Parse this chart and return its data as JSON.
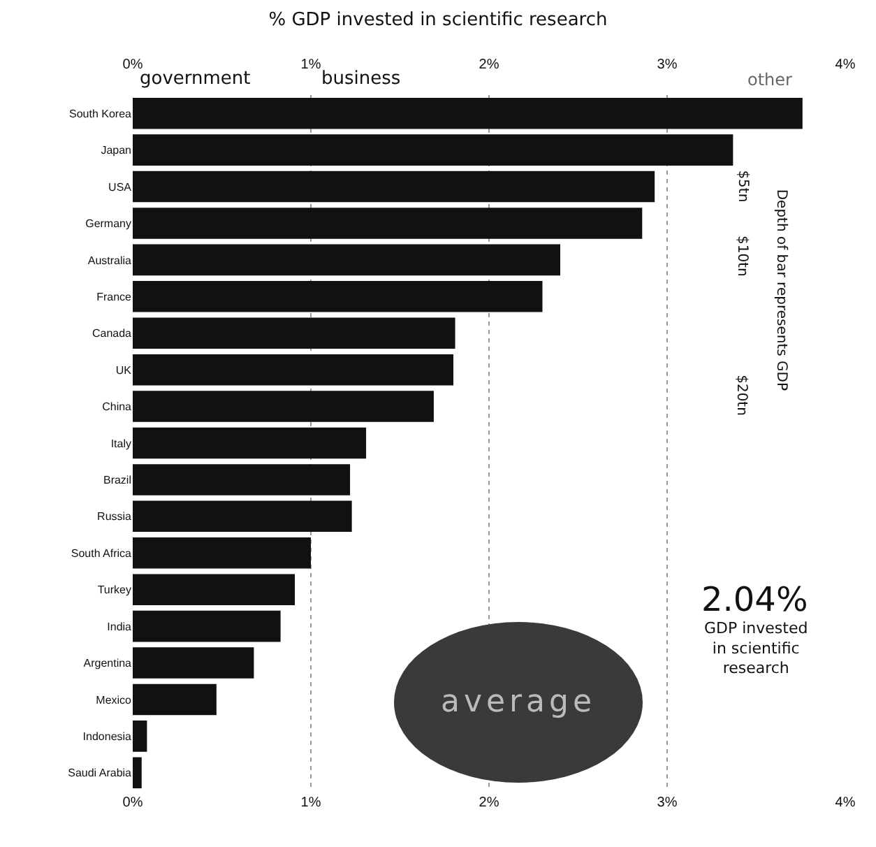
{
  "chart_data": {
    "type": "bar",
    "orientation": "horizontal",
    "title": "% GDP invested in scientific research",
    "categories": [
      "South Korea",
      "Japan",
      "USA",
      "Germany",
      "Australia",
      "France",
      "Canada",
      "UK",
      "China",
      "Italy",
      "Brazil",
      "Russia",
      "South Africa",
      "Turkey",
      "India",
      "Argentina",
      "Mexico",
      "Indonesia",
      "Saudi Arabia"
    ],
    "values": [
      3.76,
      3.37,
      2.93,
      2.86,
      2.4,
      2.3,
      1.81,
      1.8,
      1.69,
      1.31,
      1.22,
      1.23,
      1.0,
      0.91,
      0.83,
      0.68,
      0.47,
      0.08,
      0.05
    ],
    "color": "#111111",
    "xlim": [
      0,
      4
    ],
    "xticks": [
      {
        "value": 0,
        "label": "0%"
      },
      {
        "value": 1,
        "label": "1%"
      },
      {
        "value": 2,
        "label": "2%"
      },
      {
        "value": 3,
        "label": "3%"
      },
      {
        "value": 4,
        "label": "4%"
      }
    ],
    "x2lim": [
      0,
      4
    ],
    "x2ticks": [
      {
        "value": 0,
        "label": "0%"
      },
      {
        "value": 1,
        "label": "1%"
      },
      {
        "value": 2,
        "label": "2%"
      },
      {
        "value": 3,
        "label": "3%"
      },
      {
        "value": 4,
        "label": "4%"
      }
    ],
    "grid": "x",
    "annotations": [
      "government",
      "business",
      "other",
      "$5tn",
      "$10tn",
      "$20tn",
      "Depth of bar represents GDP",
      "2.04%",
      "GDP invested in scientific research",
      "average"
    ]
  }
}
